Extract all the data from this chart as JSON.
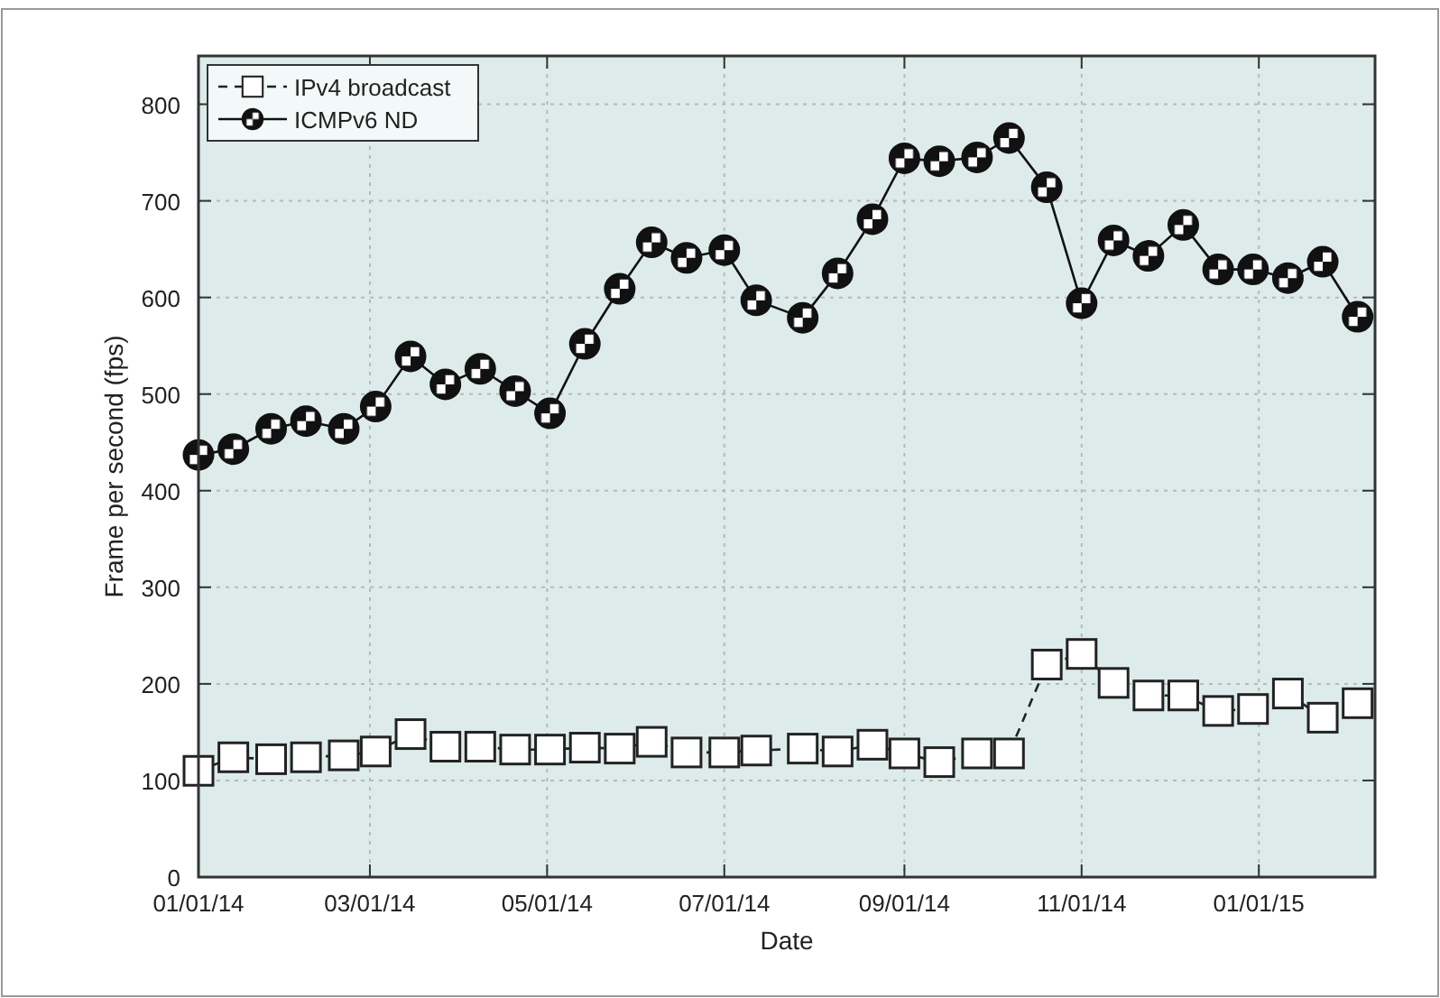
{
  "chart_data": {
    "type": "line",
    "xlabel": "Date",
    "ylabel": "Frame per second (fps)",
    "x": [
      "2014-01-01",
      "2014-01-13",
      "2014-01-26",
      "2014-02-07",
      "2014-02-20",
      "2014-03-03",
      "2014-03-15",
      "2014-03-27",
      "2014-04-08",
      "2014-04-20",
      "2014-05-02",
      "2014-05-14",
      "2014-05-26",
      "2014-06-06",
      "2014-06-18",
      "2014-07-01",
      "2014-07-12",
      "2014-07-28",
      "2014-08-09",
      "2014-08-21",
      "2014-09-01",
      "2014-09-13",
      "2014-09-26",
      "2014-10-07",
      "2014-10-20",
      "2014-11-01",
      "2014-11-12",
      "2014-11-24",
      "2014-12-06",
      "2014-12-18",
      "2014-12-30",
      "2015-01-11",
      "2015-01-23",
      "2015-02-04"
    ],
    "series": [
      {
        "name": "IPv4 broadcast",
        "color": "#222222",
        "marker": "square",
        "line_style": "dashed",
        "values": [
          110,
          124,
          122,
          124,
          126,
          130,
          148,
          135,
          135,
          132,
          132,
          134,
          133,
          140,
          129,
          129,
          131,
          133,
          130,
          137,
          128,
          119,
          128,
          128,
          220,
          231,
          201,
          188,
          188,
          172,
          174,
          190,
          165,
          180
        ]
      },
      {
        "name": "ICMPv6 ND",
        "color": "#111111",
        "marker": "circle",
        "line_style": "solid",
        "values": [
          437,
          443,
          464,
          472,
          464,
          487,
          539,
          510,
          526,
          503,
          480,
          552,
          609,
          657,
          641,
          649,
          597,
          579,
          625,
          681,
          744,
          741,
          745,
          765,
          714,
          594,
          659,
          643,
          675,
          629,
          629,
          620,
          637,
          580
        ]
      }
    ],
    "xlim": [
      "2014-01-01",
      "2015-02-10"
    ],
    "xticks": [
      {
        "value": "2014-01-01",
        "label": "01/01/14"
      },
      {
        "value": "2014-03-01",
        "label": "03/01/14"
      },
      {
        "value": "2014-05-01",
        "label": "05/01/14"
      },
      {
        "value": "2014-07-01",
        "label": "07/01/14"
      },
      {
        "value": "2014-09-01",
        "label": "09/01/14"
      },
      {
        "value": "2014-11-01",
        "label": "11/01/14"
      },
      {
        "value": "2015-01-01",
        "label": "01/01/15"
      }
    ],
    "ylim": [
      0,
      850
    ],
    "yticks": [
      0,
      100,
      200,
      300,
      400,
      500,
      600,
      700,
      800
    ],
    "grid": true,
    "legend": "top left"
  }
}
